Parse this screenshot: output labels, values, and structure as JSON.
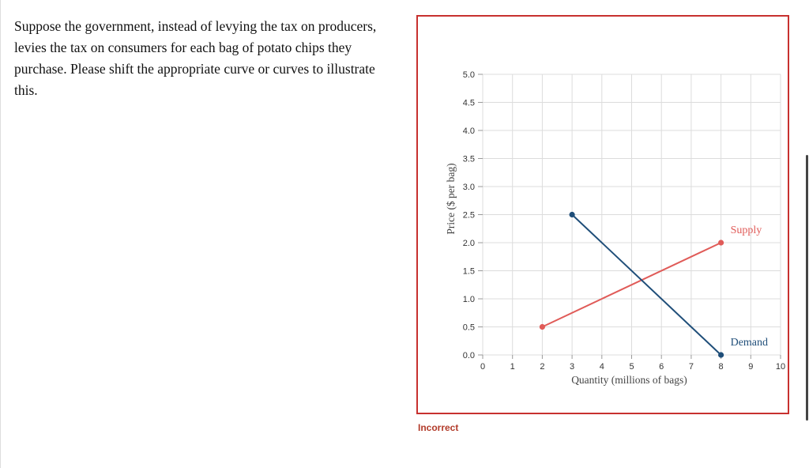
{
  "question": {
    "text": "Suppose the government, instead of levying the tax on producers, levies the tax on consumers for each bag of potato chips they purchase. Please shift the appropriate curve or curves to illustrate this."
  },
  "status": {
    "text": "Incorrect",
    "color": "#b23b2a"
  },
  "chart_data": {
    "type": "line",
    "xlabel": "Quantity (millions of bags)",
    "ylabel": "Price ($ per bag)",
    "xlim": [
      0,
      10
    ],
    "ylim": [
      0,
      5
    ],
    "x_ticks": [
      "0",
      "1",
      "2",
      "3",
      "4",
      "5",
      "6",
      "7",
      "8",
      "9",
      "10"
    ],
    "y_ticks": [
      "0.0",
      "0.5",
      "1.0",
      "1.5",
      "2.0",
      "2.5",
      "3.0",
      "3.5",
      "4.0",
      "4.5",
      "5.0"
    ],
    "grid": true,
    "series": [
      {
        "name": "Supply",
        "color": "#e05b58",
        "points": [
          [
            2,
            0.5
          ],
          [
            8,
            2.0
          ]
        ]
      },
      {
        "name": "Demand",
        "color": "#1f4e79",
        "points": [
          [
            3,
            2.5
          ],
          [
            8,
            0.0
          ]
        ]
      }
    ]
  }
}
